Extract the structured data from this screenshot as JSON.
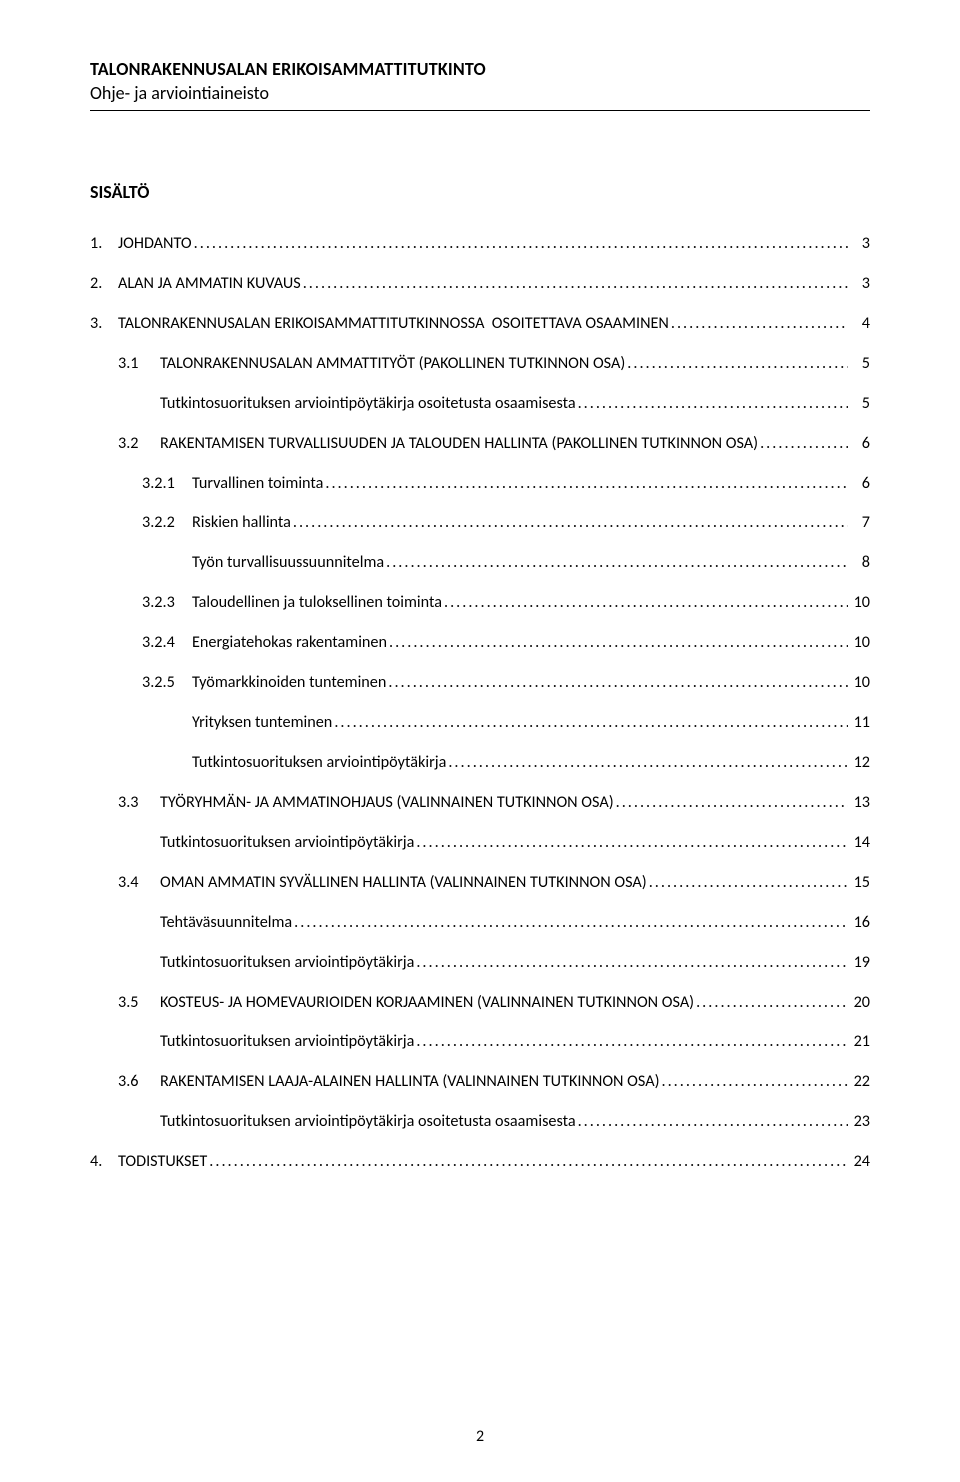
{
  "header": {
    "line1": "TALONRAKENNUSALAN ERIKOISAMMATTITUTKINTO",
    "line2": "Ohje- ja arviointiaineisto"
  },
  "toc_title": "SISÄLTÖ",
  "entries": [
    {
      "level": 1,
      "num": "1.",
      "label": "JOHDANTO",
      "page": "3"
    },
    {
      "level": 1,
      "num": "2.",
      "label": "ALAN JA AMMATIN KUVAUS",
      "page": "3"
    },
    {
      "level": 1,
      "num": "3.",
      "label": "TALONRAKENNUSALAN ERIKOISAMMATTITUTKINNOSSA  OSOITETTAVA OSAAMINEN",
      "page": "4"
    },
    {
      "level": 2,
      "num": "3.1",
      "label": "TALONRAKENNUSALAN AMMATTITYÖT (PAKOLLINEN TUTKINNON OSA)",
      "page": "5"
    },
    {
      "level": 4,
      "num": "",
      "label": "Tutkintosuorituksen arviointipöytäkirja osoitetusta osaamisesta",
      "page": "5"
    },
    {
      "level": 2,
      "num": "3.2",
      "label": "RAKENTAMISEN TURVALLISUUDEN JA TALOUDEN HALLINTA (PAKOLLINEN TUTKINNON OSA)",
      "page": "6"
    },
    {
      "level": 3,
      "num": "3.2.1",
      "label": "Turvallinen toiminta",
      "page": "6"
    },
    {
      "level": 3,
      "num": "3.2.2",
      "label": "Riskien hallinta",
      "page": "7"
    },
    {
      "level": 5,
      "num": "",
      "label": "Työn turvallisuussuunnitelma",
      "page": "8"
    },
    {
      "level": 3,
      "num": "3.2.3",
      "label": "Taloudellinen ja tuloksellinen toiminta",
      "page": "10"
    },
    {
      "level": 3,
      "num": "3.2.4",
      "label": "Energiatehokas rakentaminen",
      "page": "10"
    },
    {
      "level": 3,
      "num": "3.2.5",
      "label": "Työmarkkinoiden tunteminen",
      "page": "10"
    },
    {
      "level": 5,
      "num": "",
      "label": "Yrityksen tunteminen",
      "page": "11"
    },
    {
      "level": 5,
      "num": "",
      "label": "Tutkintosuorituksen arviointipöytäkirja",
      "page": "12"
    },
    {
      "level": 2,
      "num": "3.3",
      "label": "TYÖRYHMÄN- JA AMMATINOHJAUS (VALINNAINEN TUTKINNON OSA)",
      "page": "13"
    },
    {
      "level": 4,
      "num": "",
      "label": "Tutkintosuorituksen arviointipöytäkirja",
      "page": "14"
    },
    {
      "level": 2,
      "num": "3.4",
      "label": "OMAN AMMATIN SYVÄLLINEN HALLINTA (VALINNAINEN TUTKINNON OSA)",
      "page": "15"
    },
    {
      "level": 4,
      "num": "",
      "label": "Tehtäväsuunnitelma",
      "page": "16"
    },
    {
      "level": 4,
      "num": "",
      "label": "Tutkintosuorituksen arviointipöytäkirja",
      "page": "19"
    },
    {
      "level": 2,
      "num": "3.5",
      "label": "KOSTEUS- JA HOMEVAURIOIDEN KORJAAMINEN (VALINNAINEN TUTKINNON OSA)",
      "page": "20"
    },
    {
      "level": 4,
      "num": "",
      "label": "Tutkintosuorituksen arviointipöytäkirja",
      "page": "21"
    },
    {
      "level": 2,
      "num": "3.6",
      "label": "RAKENTAMISEN LAAJA-ALAINEN HALLINTA (VALINNAINEN TUTKINNON OSA)",
      "page": "22"
    },
    {
      "level": 4,
      "num": "",
      "label": "Tutkintosuorituksen arviointipöytäkirja osoitetusta osaamisesta",
      "page": "23"
    },
    {
      "level": 1,
      "num": "4.",
      "label": "TODISTUKSET",
      "page": "24"
    }
  ],
  "footer_page": "2"
}
